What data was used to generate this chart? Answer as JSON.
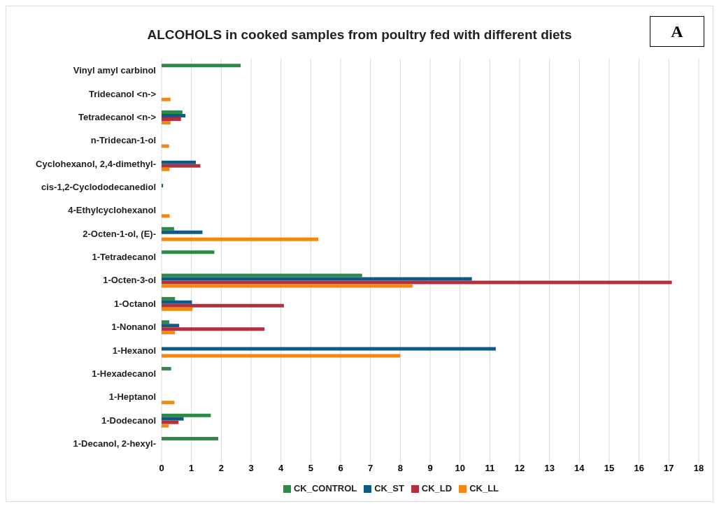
{
  "chart_data": {
    "type": "bar",
    "orientation": "horizontal",
    "title": "ALCOHOLS in cooked samples from poultry fed with different diets",
    "annotations": [
      "A"
    ],
    "categories": [
      "Vinyl amyl carbinol",
      "Tridecanol <n->",
      "Tetradecanol <n->",
      "n-Tridecan-1-ol",
      "Cyclohexanol, 2,4-dimethyl-",
      "cis-1,2-Cyclododecanediol",
      "4-Ethylcyclohexanol",
      "2-Octen-1-ol, (E)-",
      "1-Tetradecanol",
      "1-Octen-3-ol",
      "1-Octanol",
      "1-Nonanol",
      "1-Hexanol",
      "1-Hexadecanol",
      "1-Heptanol",
      "1-Dodecanol",
      "1-Decanol, 2-hexyl-"
    ],
    "series": [
      {
        "name": "CK_CONTROL",
        "color": "#2e8b47",
        "values": [
          2.65,
          null,
          0.7,
          null,
          null,
          null,
          null,
          0.42,
          1.77,
          6.72,
          0.45,
          0.26,
          null,
          0.32,
          null,
          1.65,
          1.9
        ]
      },
      {
        "name": "CK_ST",
        "color": "#0f5a82",
        "values": [
          null,
          null,
          0.8,
          null,
          1.15,
          0.05,
          null,
          1.37,
          null,
          10.4,
          1.02,
          0.59,
          11.2,
          null,
          null,
          0.74,
          null
        ]
      },
      {
        "name": "CK_LD",
        "color": "#b5303f",
        "values": [
          null,
          null,
          0.65,
          null,
          1.3,
          null,
          null,
          null,
          null,
          17.1,
          4.1,
          3.45,
          null,
          null,
          null,
          0.57,
          null
        ]
      },
      {
        "name": "CK_LL",
        "color": "#f5870f",
        "values": [
          null,
          0.3,
          0.3,
          0.25,
          0.27,
          null,
          0.27,
          5.25,
          null,
          8.41,
          1.03,
          0.45,
          8.0,
          null,
          0.43,
          0.24,
          null
        ]
      }
    ],
    "xlim": [
      0,
      18
    ],
    "xticks": [
      0,
      1,
      2,
      3,
      4,
      5,
      6,
      7,
      8,
      9,
      10,
      11,
      12,
      13,
      14,
      15,
      16,
      17,
      18
    ],
    "grid": "x",
    "legend": "bottom"
  }
}
